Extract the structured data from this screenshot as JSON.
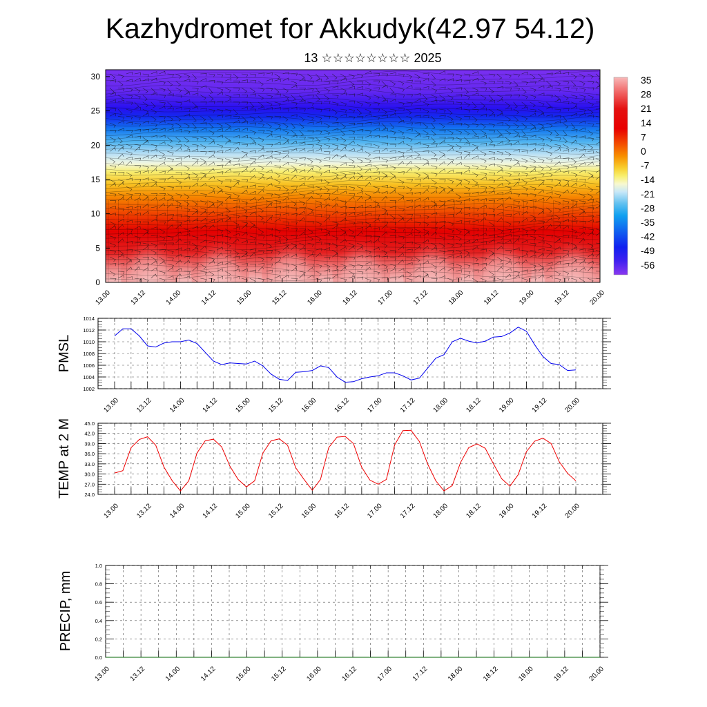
{
  "title": "Kazhydromet for Akkudyk(42.97 54.12)",
  "subtitle": "13 ☆☆☆☆☆☆☆☆ 2025",
  "colors": {
    "pmsl_line": "#0000ee",
    "temp_line": "#ee0000",
    "precip_line": "#006600",
    "colorbar": [
      "#f8b4b4",
      "#f07878",
      "#e82020",
      "#e80000",
      "#f03000",
      "#f86000",
      "#f89000",
      "#f8c000",
      "#f8f060",
      "#f8f8c0",
      "#e0f0f8",
      "#a0d8f0",
      "#50b8f0",
      "#10a0f0",
      "#1070f0",
      "#1030f0",
      "#3010f0",
      "#8030f0"
    ]
  },
  "time_labels": [
    "13.00",
    "13.12",
    "14.00",
    "14.12",
    "15.00",
    "15.12",
    "16.00",
    "16.12",
    "17.00",
    "17.12",
    "18.00",
    "18.12",
    "19.00",
    "19.12",
    "20.00"
  ],
  "chart_data": [
    {
      "type": "heatmap",
      "name": "temperature_wind_cross_section",
      "y_ticks": [
        0,
        5,
        10,
        15,
        20,
        25,
        30
      ],
      "ylim": [
        0,
        31
      ],
      "colorbar_labels": [
        "35",
        "28",
        "21",
        "14",
        "7",
        "0",
        "-7",
        "-14",
        "-21",
        "-28",
        "-35",
        "-42",
        "-49",
        "-56"
      ]
    },
    {
      "type": "line",
      "ylabel": "PMSL",
      "ylim": [
        1002,
        1014
      ],
      "y_ticks": [
        "1014",
        "1012",
        "1010",
        "1008",
        "1006",
        "1004",
        "1002"
      ],
      "x": [
        0,
        3,
        6,
        9,
        12,
        15,
        18,
        21,
        24,
        27,
        30,
        33,
        36,
        39,
        42,
        45,
        48,
        51,
        54,
        57,
        60,
        63,
        66,
        69,
        72,
        75,
        78,
        81,
        84,
        87,
        90,
        93,
        96,
        99,
        102,
        105,
        108,
        111,
        114,
        117,
        120,
        123,
        126,
        129,
        132,
        135,
        138,
        141,
        144,
        147,
        150,
        153,
        156,
        159,
        162,
        165,
        168
      ],
      "values": [
        1011.0,
        1012.2,
        1012.2,
        1011.0,
        1009.3,
        1009.1,
        1009.8,
        1010.0,
        1010.0,
        1010.3,
        1009.7,
        1008.2,
        1006.7,
        1006.1,
        1006.4,
        1006.3,
        1006.2,
        1006.7,
        1005.9,
        1004.5,
        1003.6,
        1003.4,
        1004.8,
        1004.9,
        1005.1,
        1005.9,
        1005.6,
        1004.0,
        1003.1,
        1003.2,
        1003.7,
        1004.0,
        1004.2,
        1004.7,
        1004.7,
        1004.2,
        1003.5,
        1003.8,
        1005.5,
        1007.2,
        1007.8,
        1010.0,
        1010.6,
        1010.1,
        1009.8,
        1010.1,
        1010.8,
        1010.9,
        1011.5,
        1012.5,
        1011.8,
        1009.5,
        1007.5,
        1006.3,
        1006.1,
        1005.1,
        1005.2
      ]
    },
    {
      "type": "line",
      "ylabel": "TEMP at 2 M",
      "ylim": [
        24,
        45
      ],
      "y_ticks": [
        "45.0",
        "42.0",
        "39.0",
        "36.0",
        "33.0",
        "30.0",
        "27.0",
        "24.0"
      ],
      "x": [
        0,
        3,
        6,
        9,
        12,
        15,
        18,
        21,
        24,
        27,
        30,
        33,
        36,
        39,
        42,
        45,
        48,
        51,
        54,
        57,
        60,
        63,
        66,
        69,
        72,
        75,
        78,
        81,
        84,
        87,
        90,
        93,
        96,
        99,
        102,
        105,
        108,
        111,
        114,
        117,
        120,
        123,
        126,
        129,
        132,
        135,
        138,
        141,
        144,
        147,
        150,
        153,
        156,
        159,
        162,
        165,
        168
      ],
      "values": [
        30.3,
        31.0,
        37.8,
        40.2,
        41.0,
        38.5,
        32.0,
        28.0,
        25.0,
        28.0,
        36.2,
        39.8,
        40.3,
        38.0,
        32.3,
        28.4,
        26.2,
        28.0,
        36.2,
        39.8,
        40.4,
        38.5,
        31.8,
        28.4,
        25.2,
        28.4,
        37.8,
        40.9,
        41.1,
        39.0,
        32.0,
        28.2,
        27.0,
        28.4,
        38.6,
        42.8,
        42.9,
        39.6,
        33.0,
        28.0,
        25.0,
        26.6,
        33.4,
        37.8,
        38.9,
        37.6,
        33.0,
        28.6,
        26.4,
        29.8,
        36.6,
        39.7,
        40.6,
        39.0,
        33.6,
        30.2,
        28.0
      ]
    },
    {
      "type": "line",
      "ylabel": "PRECIP, mm",
      "ylim": [
        0,
        1
      ],
      "y_ticks": [
        "1.0",
        "0.8",
        "0.6",
        "0.4",
        "0.2",
        "0.0"
      ],
      "x": [
        0,
        168
      ],
      "values": [
        0,
        0
      ]
    }
  ]
}
